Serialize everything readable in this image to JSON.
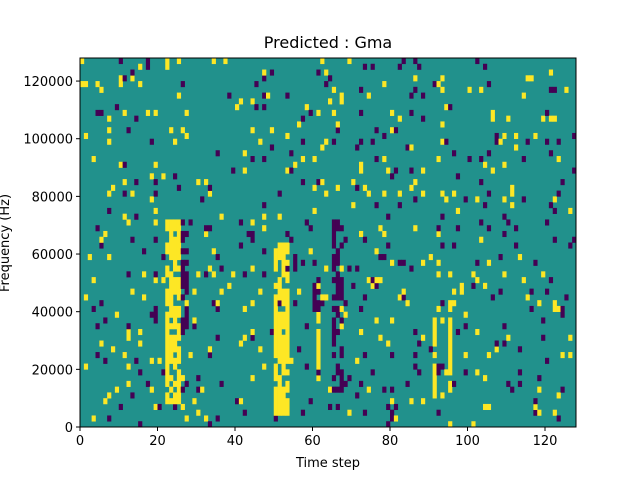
{
  "chart_data": {
    "type": "heatmap",
    "title": "Predicted : Gma",
    "xlabel": "Time step",
    "ylabel": "Frequency (Hz)",
    "xlim": [
      0,
      128
    ],
    "ylim": [
      0,
      128000
    ],
    "xticks": [
      0,
      20,
      40,
      60,
      80,
      100,
      120
    ],
    "yticks": [
      0,
      20000,
      40000,
      60000,
      80000,
      100000,
      120000
    ],
    "ytick_labels": [
      "0",
      "20000",
      "40000",
      "60000",
      "80000",
      "100000",
      "120000"
    ],
    "grid": false,
    "n_time_steps": 128,
    "n_freq_bins": 64,
    "colormap": "viridis",
    "colors": {
      "background_class": "#21918c",
      "high_class": "#fde725",
      "low_class": "#440154"
    },
    "yellow_columns": [
      {
        "t_start": 22,
        "t_end": 26,
        "f_min": 8000,
        "f_max": 72000
      },
      {
        "t_start": 50,
        "t_end": 54,
        "f_min": 4000,
        "f_max": 64000
      },
      {
        "t_start": 61,
        "t_end": 62,
        "f_min": 20000,
        "f_max": 40000
      },
      {
        "t_start": 91,
        "t_end": 92,
        "f_min": 12000,
        "f_max": 40000
      },
      {
        "t_start": 95,
        "t_end": 96,
        "f_min": 12000,
        "f_max": 48000
      }
    ],
    "purple_columns": [
      {
        "t_start": 26,
        "t_end": 28,
        "f_min": 32000,
        "f_max": 72000
      },
      {
        "t_start": 65,
        "t_end": 68,
        "f_min": 12000,
        "f_max": 72000
      },
      {
        "t_start": 60,
        "t_end": 62,
        "f_min": 40000,
        "f_max": 52000
      },
      {
        "t_start": 79,
        "t_end": 81,
        "f_min": 0,
        "f_max": 8000
      }
    ]
  }
}
